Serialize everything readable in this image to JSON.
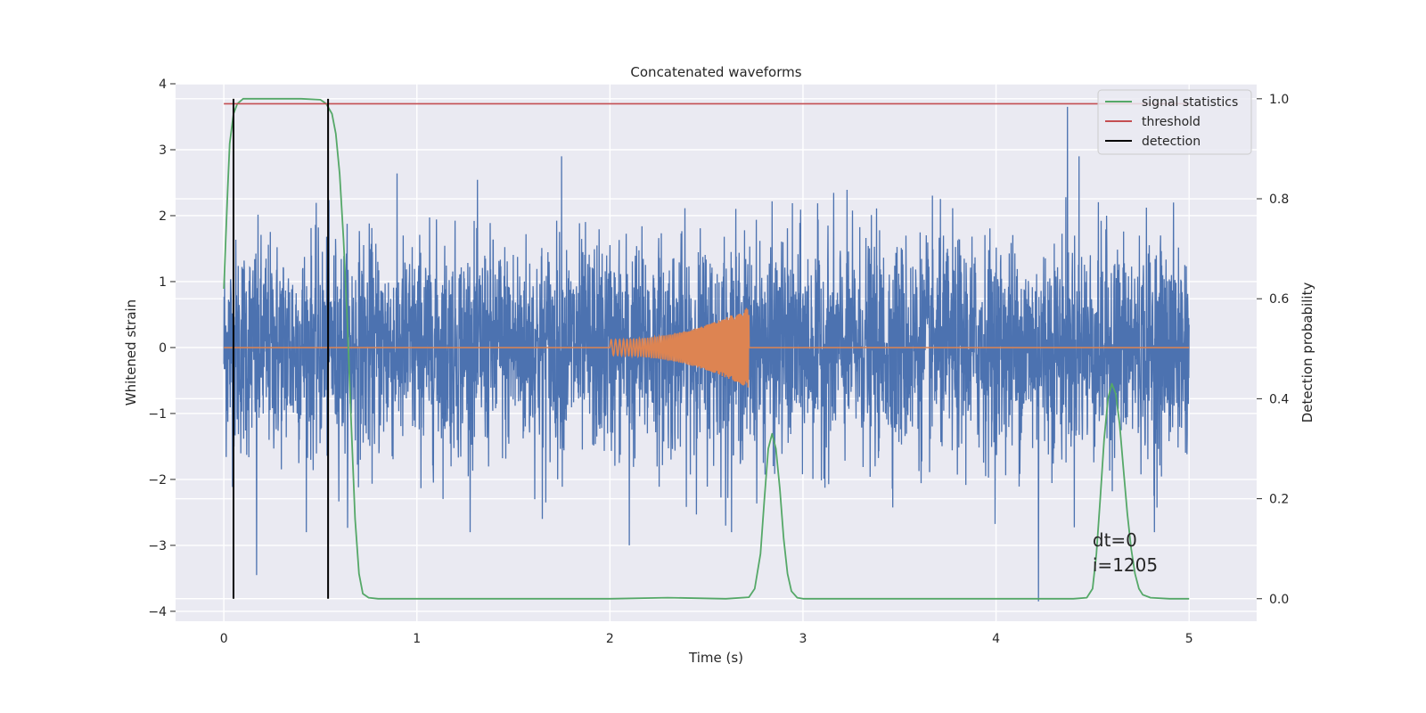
{
  "chart_data": {
    "type": "line",
    "title": "Concatenated waveforms",
    "xlabel": "Time (s)",
    "ylabel": "Whitened strain",
    "y2label": "Detection probability",
    "xlim": [
      -0.25,
      5.35
    ],
    "ylim": [
      -4.15,
      4.0
    ],
    "y2lim": [
      -0.045,
      1.03
    ],
    "xticks": [
      0,
      1,
      2,
      3,
      4,
      5
    ],
    "xtick_labels": [
      "0",
      "1",
      "2",
      "3",
      "4",
      "5"
    ],
    "yticks": [
      -4,
      -3,
      -2,
      -1,
      0,
      1,
      2,
      3,
      4
    ],
    "ytick_labels": [
      "−4",
      "−3",
      "−2",
      "−1",
      "0",
      "1",
      "2",
      "3",
      "4"
    ],
    "y2ticks": [
      0.0,
      0.2,
      0.4,
      0.6,
      0.8,
      1.0
    ],
    "y2tick_labels": [
      "0.0",
      "0.2",
      "0.4",
      "0.6",
      "0.8",
      "1.0"
    ],
    "grid": true,
    "legend": {
      "placement": "top-right",
      "entries": [
        {
          "label": "signal statistics",
          "color": "#55a868"
        },
        {
          "label": "threshold",
          "color": "#c44e52"
        },
        {
          "label": "detection",
          "color": "#000000"
        }
      ]
    },
    "annotation": {
      "lines": [
        "dt=0",
        "i=1205"
      ],
      "x": 4.5,
      "y": -3.0
    },
    "series": [
      {
        "role": "strain",
        "color": "#4c72b0",
        "x_range": [
          0,
          5
        ],
        "samples": 4096,
        "typical_amplitude": 1.3,
        "peaks": [
          {
            "x": 0.17,
            "y": -3.45
          },
          {
            "x": 1.65,
            "y": -2.6
          },
          {
            "x": 2.1,
            "y": -3.0
          },
          {
            "x": 2.6,
            "y": -2.7
          },
          {
            "x": 4.22,
            "y": -3.85
          },
          {
            "x": 4.37,
            "y": 3.65
          },
          {
            "x": 4.43,
            "y": 2.9
          },
          {
            "x": 4.82,
            "y": -2.8
          },
          {
            "x": 1.75,
            "y": 2.9
          }
        ]
      },
      {
        "role": "waveform",
        "color": "#dd8452",
        "x_range": [
          0,
          5
        ],
        "chirp_start": 2.0,
        "chirp_end": 2.72,
        "amplitude_start": 0.12,
        "amplitude_end": 0.62
      },
      {
        "role": "signal statistics",
        "axis": "right",
        "color": "#55a868",
        "x": [
          0.0,
          0.01,
          0.02,
          0.03,
          0.05,
          0.07,
          0.1,
          0.15,
          0.2,
          0.3,
          0.4,
          0.5,
          0.53,
          0.56,
          0.58,
          0.6,
          0.62,
          0.64,
          0.66,
          0.68,
          0.7,
          0.72,
          0.75,
          0.8,
          1.0,
          2.0,
          2.3,
          2.6,
          2.72,
          2.75,
          2.78,
          2.8,
          2.82,
          2.84,
          2.86,
          2.88,
          2.9,
          2.92,
          2.94,
          2.97,
          3.0,
          3.2,
          4.0,
          4.4,
          4.47,
          4.5,
          4.52,
          4.54,
          4.56,
          4.58,
          4.6,
          4.62,
          4.64,
          4.66,
          4.68,
          4.7,
          4.72,
          4.74,
          4.76,
          4.8,
          4.9,
          5.0
        ],
        "y": [
          0.62,
          0.72,
          0.82,
          0.91,
          0.97,
          0.99,
          1.0,
          1.0,
          1.0,
          1.0,
          1.0,
          0.998,
          0.99,
          0.97,
          0.93,
          0.85,
          0.72,
          0.55,
          0.35,
          0.16,
          0.05,
          0.01,
          0.002,
          0.0,
          0.0,
          0.0,
          0.002,
          0.0,
          0.003,
          0.02,
          0.09,
          0.2,
          0.3,
          0.33,
          0.3,
          0.22,
          0.12,
          0.05,
          0.015,
          0.002,
          0.0,
          0.0,
          0.0,
          0.0,
          0.002,
          0.02,
          0.09,
          0.2,
          0.32,
          0.4,
          0.43,
          0.41,
          0.35,
          0.26,
          0.17,
          0.1,
          0.05,
          0.02,
          0.008,
          0.002,
          0.0,
          0.0
        ]
      },
      {
        "role": "threshold",
        "axis": "right",
        "color": "#c44e52",
        "x": [
          0,
          5
        ],
        "y": [
          0.99,
          0.99
        ]
      },
      {
        "role": "detection",
        "axis": "right",
        "color": "#000000",
        "vertical_lines": [
          0.05,
          0.54
        ],
        "y_from": 0.0,
        "y_to": 1.0
      }
    ]
  }
}
